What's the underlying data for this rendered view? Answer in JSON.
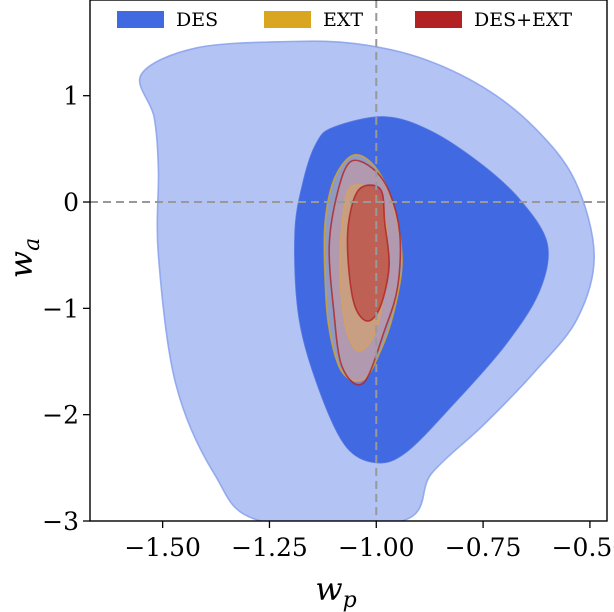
{
  "chart_data": {
    "type": "contour",
    "xlabel": "w",
    "xlabel_sub": "p",
    "ylabel": "w",
    "ylabel_sub": "a",
    "xlim": [
      -1.67,
      -0.46
    ],
    "ylim": [
      -3.0,
      1.9
    ],
    "xticks": [
      -1.5,
      -1.25,
      -1.0,
      -0.75,
      -0.5
    ],
    "xtick_labels": [
      "−1.50",
      "−1.25",
      "−1.00",
      "−0.75",
      "−0.50"
    ],
    "yticks": [
      -3,
      -2,
      -1,
      0,
      1
    ],
    "ytick_labels": [
      "−3",
      "−2",
      "−1",
      "0",
      "1"
    ],
    "reference_lines": {
      "x": -1.0,
      "y": 0.0
    },
    "legend_position": "top",
    "series": [
      {
        "name": "DES",
        "color": "#4169e1",
        "contours": [
          {
            "level": "95%",
            "points": [
              [
                -1.42,
                1.45
              ],
              [
                -1.2,
                1.51
              ],
              [
                -1.05,
                1.49
              ],
              [
                -0.9,
                1.36
              ],
              [
                -0.75,
                1.08
              ],
              [
                -0.63,
                0.7
              ],
              [
                -0.535,
                0.2
              ],
              [
                -0.49,
                -0.5
              ],
              [
                -0.53,
                -1.1
              ],
              [
                -0.63,
                -1.6
              ],
              [
                -0.75,
                -2.1
              ],
              [
                -0.87,
                -2.55
              ],
              [
                -0.94,
                -3.0
              ],
              [
                -1.27,
                -3.0
              ],
              [
                -1.38,
                -2.55
              ],
              [
                -1.47,
                -1.7
              ],
              [
                -1.51,
                -0.5
              ],
              [
                -1.51,
                0.3
              ],
              [
                -1.52,
                0.8
              ],
              [
                -1.55,
                1.2
              ]
            ]
          },
          {
            "level": "68%",
            "points": [
              [
                -1.1,
                0.7
              ],
              [
                -0.98,
                0.8
              ],
              [
                -0.87,
                0.66
              ],
              [
                -0.75,
                0.34
              ],
              [
                -0.66,
                0.0
              ],
              [
                -0.6,
                -0.4
              ],
              [
                -0.62,
                -0.85
              ],
              [
                -0.7,
                -1.35
              ],
              [
                -0.82,
                -1.9
              ],
              [
                -0.93,
                -2.35
              ],
              [
                -1.0,
                -2.45
              ],
              [
                -1.07,
                -2.3
              ],
              [
                -1.13,
                -1.8
              ],
              [
                -1.18,
                -1.1
              ],
              [
                -1.19,
                -0.3
              ],
              [
                -1.17,
                0.2
              ],
              [
                -1.14,
                0.55
              ]
            ]
          }
        ]
      },
      {
        "name": "EXT",
        "color": "#daa520",
        "contours": [
          {
            "level": "95%",
            "points": [
              [
                -1.06,
                0.43
              ],
              [
                -1.02,
                0.4
              ],
              [
                -0.98,
                0.18
              ],
              [
                -0.95,
                -0.2
              ],
              [
                -0.94,
                -0.6
              ],
              [
                -0.96,
                -1.05
              ],
              [
                -0.99,
                -1.4
              ],
              [
                -1.03,
                -1.67
              ],
              [
                -1.08,
                -1.6
              ],
              [
                -1.11,
                -1.2
              ],
              [
                -1.12,
                -0.7
              ],
              [
                -1.12,
                -0.2
              ],
              [
                -1.1,
                0.2
              ]
            ]
          },
          {
            "level": "68%",
            "points": [
              [
                -1.06,
                0.14
              ],
              [
                -1.0,
                0.08
              ],
              [
                -0.975,
                -0.3
              ],
              [
                -0.98,
                -0.75
              ],
              [
                -1.0,
                -1.2
              ],
              [
                -1.04,
                -1.4
              ],
              [
                -1.07,
                -1.2
              ],
              [
                -1.085,
                -0.7
              ],
              [
                -1.08,
                -0.2
              ]
            ]
          }
        ]
      },
      {
        "name": "DES+EXT",
        "color": "#b22222",
        "contours": [
          {
            "level": "95%",
            "points": [
              [
                -1.06,
                0.38
              ],
              [
                -1.01,
                0.32
              ],
              [
                -0.97,
                0.1
              ],
              [
                -0.945,
                -0.3
              ],
              [
                -0.95,
                -0.8
              ],
              [
                -0.98,
                -1.2
              ],
              [
                -1.03,
                -1.7
              ],
              [
                -1.08,
                -1.55
              ],
              [
                -1.1,
                -1.0
              ],
              [
                -1.11,
                -0.4
              ],
              [
                -1.09,
                0.1
              ]
            ]
          },
          {
            "level": "68%",
            "points": [
              [
                -1.04,
                0.12
              ],
              [
                -0.99,
                0.12
              ],
              [
                -0.98,
                -0.2
              ],
              [
                -0.97,
                -0.6
              ],
              [
                -0.99,
                -0.98
              ],
              [
                -1.02,
                -1.12
              ],
              [
                -1.05,
                -0.98
              ],
              [
                -1.065,
                -0.6
              ],
              [
                -1.065,
                -0.2
              ]
            ]
          }
        ]
      }
    ]
  }
}
